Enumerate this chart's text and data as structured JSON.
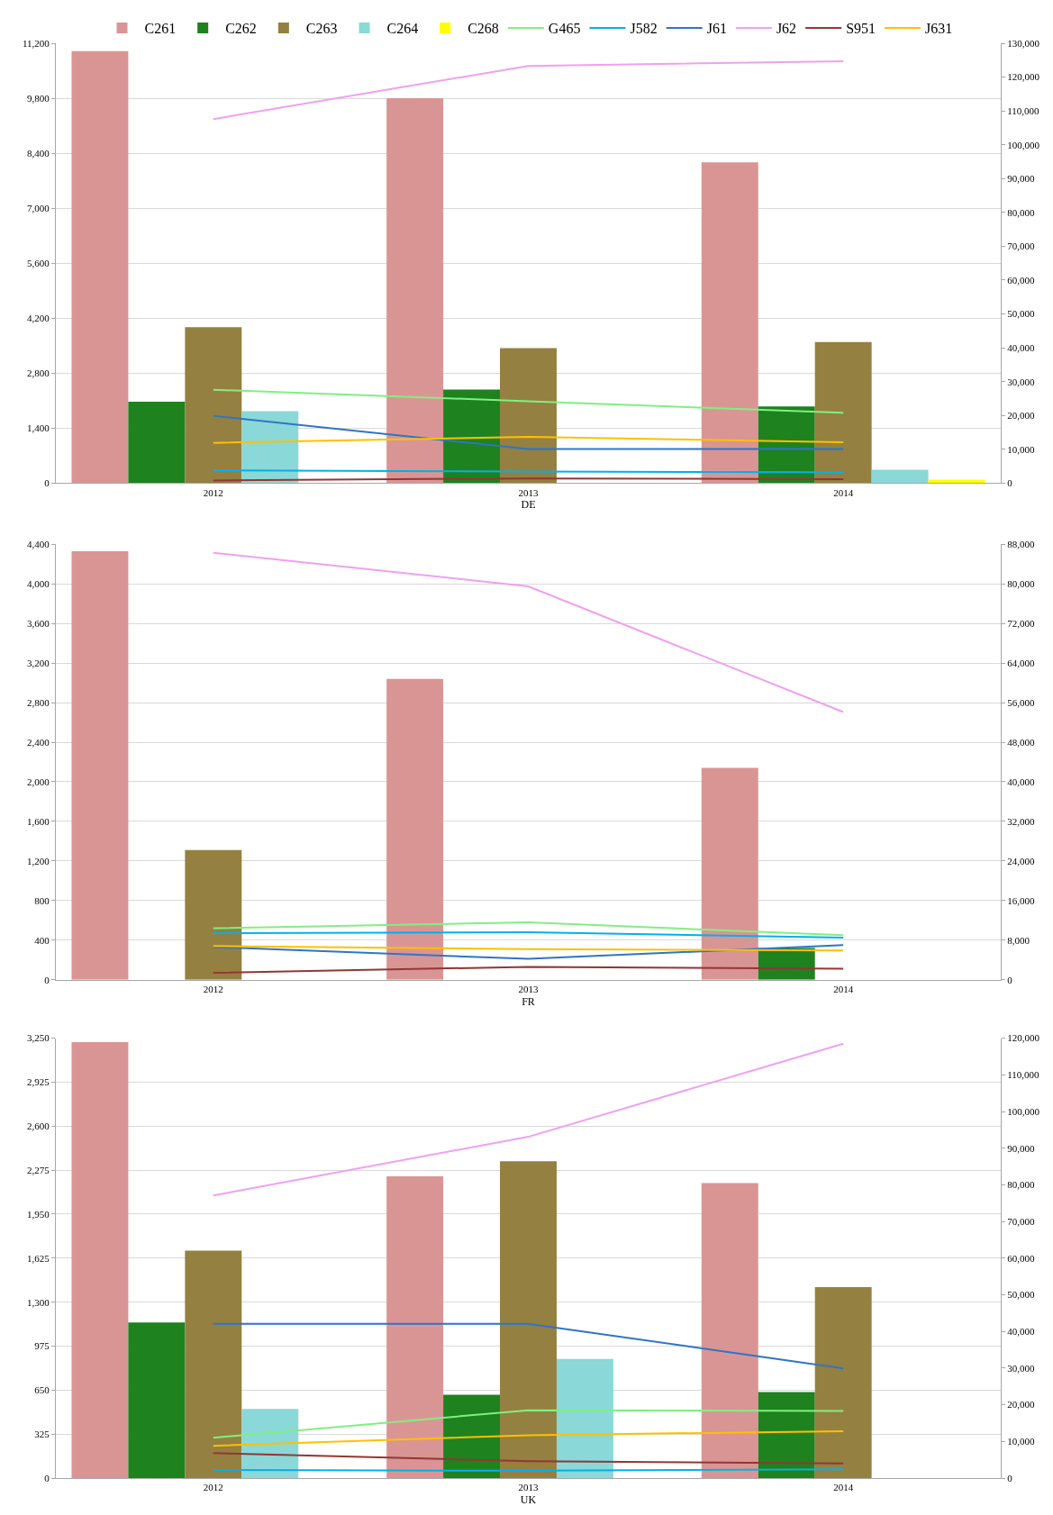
{
  "chart_data": [
    {
      "type": "bar",
      "xlabel": "DE",
      "categories": [
        "2012",
        "2013",
        "2014"
      ],
      "legend": "top",
      "grid": "y",
      "ylim": [
        0,
        11200
      ],
      "yticks": [
        0,
        {
          "value": 1400,
          "label": "1,400"
        },
        {
          "value": 2800,
          "label": "2,800"
        },
        {
          "value": 4200,
          "label": "4,200"
        },
        {
          "value": 5600,
          "label": "5,600"
        },
        {
          "value": 7000,
          "label": "7,000"
        },
        {
          "value": 8400,
          "label": "8,400"
        },
        {
          "value": 9800,
          "label": "9,800"
        },
        {
          "value": 11200,
          "label": "11,200"
        }
      ],
      "y2lim": [
        0,
        130000
      ],
      "y2ticks": [
        0,
        {
          "value": 10000,
          "label": "10,000"
        },
        {
          "value": 20000,
          "label": "20,000"
        },
        {
          "value": 30000,
          "label": "30,000"
        },
        {
          "value": 40000,
          "label": "40,000"
        },
        {
          "value": 50000,
          "label": "50,000"
        },
        {
          "value": 60000,
          "label": "60,000"
        },
        {
          "value": 70000,
          "label": "70,000"
        },
        {
          "value": 80000,
          "label": "80,000"
        },
        {
          "value": 90000,
          "label": "90,000"
        },
        {
          "value": 100000,
          "label": "100,000"
        },
        {
          "value": 110000,
          "label": "110,000"
        },
        {
          "value": 120000,
          "label": "120,000"
        },
        {
          "value": 130000,
          "label": "130,000"
        }
      ],
      "series": [
        {
          "name": "C261",
          "color": "#d99594",
          "values": [
            11000,
            9800,
            8170
          ]
        },
        {
          "name": "C262",
          "color": "#1e821e",
          "values": [
            2070,
            2380,
            1950
          ]
        },
        {
          "name": "C263",
          "color": "#948040",
          "values": [
            3970,
            3440,
            3590
          ]
        },
        {
          "name": "C264",
          "color": "#8ad8d8",
          "values": [
            1830,
            null,
            340
          ]
        },
        {
          "name": "C268",
          "color": "#ffff00",
          "values": [
            null,
            null,
            90
          ]
        },
        {
          "name": "G465",
          "color": "#80f080",
          "type": "line",
          "axis": "y2",
          "values": [
            27600,
            24200,
            20800
          ]
        },
        {
          "name": "J582",
          "color": "#00b0f0",
          "type": "line",
          "axis": "y2",
          "values": [
            3800,
            3400,
            3200
          ]
        },
        {
          "name": "J61",
          "color": "#2e75c6",
          "type": "line",
          "axis": "y2",
          "values": [
            19900,
            10100,
            10100
          ]
        },
        {
          "name": "J62",
          "color": "#f0a0f0",
          "type": "line",
          "axis": "y2",
          "values": [
            107600,
            123300,
            124700
          ]
        },
        {
          "name": "S951",
          "color": "#943634",
          "type": "line",
          "axis": "y2",
          "values": [
            800,
            1400,
            1200
          ]
        },
        {
          "name": "J631",
          "color": "#ffc000",
          "type": "line",
          "axis": "y2",
          "values": [
            11900,
            13700,
            12100
          ]
        }
      ]
    },
    {
      "type": "bar",
      "xlabel": "FR",
      "categories": [
        "2012",
        "2013",
        "2014"
      ],
      "grid": "y",
      "ylim": [
        0,
        4400
      ],
      "yticks": [
        0,
        400,
        800,
        {
          "value": 1200,
          "label": "1,200"
        },
        {
          "value": 1600,
          "label": "1,600"
        },
        {
          "value": 2000,
          "label": "2,000"
        },
        {
          "value": 2400,
          "label": "2,400"
        },
        {
          "value": 2800,
          "label": "2,800"
        },
        {
          "value": 3200,
          "label": "3,200"
        },
        {
          "value": 3600,
          "label": "3,600"
        },
        {
          "value": 4000,
          "label": "4,000"
        },
        {
          "value": 4400,
          "label": "4,400"
        }
      ],
      "y2lim": [
        0,
        88000
      ],
      "y2ticks": [
        0,
        {
          "value": 8000,
          "label": "8,000"
        },
        {
          "value": 16000,
          "label": "16,000"
        },
        {
          "value": 24000,
          "label": "24,000"
        },
        {
          "value": 32000,
          "label": "32,000"
        },
        {
          "value": 40000,
          "label": "40,000"
        },
        {
          "value": 48000,
          "label": "48,000"
        },
        {
          "value": 56000,
          "label": "56,000"
        },
        {
          "value": 64000,
          "label": "64,000"
        },
        {
          "value": 72000,
          "label": "72,000"
        },
        {
          "value": 80000,
          "label": "80,000"
        },
        {
          "value": 88000,
          "label": "88,000"
        }
      ],
      "series": [
        {
          "color": "#d99594",
          "values": [
            4330,
            3040,
            2140
          ]
        },
        {
          "color": "#1e821e",
          "values": [
            null,
            null,
            320
          ]
        },
        {
          "color": "#948040",
          "values": [
            1310,
            null,
            null
          ]
        },
        {
          "color": "#8ad8d8",
          "values": [
            null,
            null,
            null
          ]
        },
        {
          "color": "#ffff00",
          "values": [
            null,
            null,
            null
          ]
        },
        {
          "color": "#80f080",
          "type": "line",
          "axis": "y2",
          "values": [
            10400,
            11600,
            9000
          ]
        },
        {
          "color": "#00b0f0",
          "type": "line",
          "axis": "y2",
          "values": [
            9400,
            9600,
            8500
          ]
        },
        {
          "color": "#2e75c6",
          "type": "line",
          "axis": "y2",
          "values": [
            6600,
            4200,
            7000
          ]
        },
        {
          "color": "#f0a0f0",
          "type": "line",
          "axis": "y2",
          "values": [
            86300,
            79500,
            54100
          ]
        },
        {
          "color": "#943634",
          "type": "line",
          "axis": "y2",
          "values": [
            1400,
            2600,
            2200
          ]
        },
        {
          "color": "#ffc000",
          "type": "line",
          "axis": "y2",
          "values": [
            6800,
            6200,
            5900
          ]
        }
      ]
    },
    {
      "type": "bar",
      "xlabel": "UK",
      "categories": [
        "2012",
        "2013",
        "2014"
      ],
      "grid": "y",
      "ylim": [
        0,
        3250
      ],
      "yticks": [
        0,
        325,
        650,
        975,
        {
          "value": 1300,
          "label": "1,300"
        },
        {
          "value": 1625,
          "label": "1,625"
        },
        {
          "value": 1950,
          "label": "1,950"
        },
        {
          "value": 2275,
          "label": "2,275"
        },
        {
          "value": 2600,
          "label": "2,600"
        },
        {
          "value": 2925,
          "label": "2,925"
        },
        {
          "value": 3250,
          "label": "3,250"
        }
      ],
      "y2lim": [
        0,
        120000
      ],
      "y2ticks": [
        0,
        {
          "value": 10000,
          "label": "10,000"
        },
        {
          "value": 20000,
          "label": "20,000"
        },
        {
          "value": 30000,
          "label": "30,000"
        },
        {
          "value": 40000,
          "label": "40,000"
        },
        {
          "value": 50000,
          "label": "50,000"
        },
        {
          "value": 60000,
          "label": "60,000"
        },
        {
          "value": 70000,
          "label": "70,000"
        },
        {
          "value": 80000,
          "label": "80,000"
        },
        {
          "value": 90000,
          "label": "90,000"
        },
        {
          "value": 100000,
          "label": "100,000"
        },
        {
          "value": 110000,
          "label": "110,000"
        },
        {
          "value": 120000,
          "label": "120,000"
        }
      ],
      "series": [
        {
          "color": "#d99594",
          "values": [
            3220,
            2230,
            2180
          ]
        },
        {
          "color": "#1e821e",
          "values": [
            1150,
            615,
            635
          ]
        },
        {
          "color": "#948040",
          "values": [
            1680,
            2340,
            1410
          ]
        },
        {
          "color": "#8ad8d8",
          "values": [
            510,
            880,
            null
          ]
        },
        {
          "color": "#ffff00",
          "values": [
            null,
            null,
            null
          ]
        },
        {
          "color": "#80f080",
          "type": "line",
          "axis": "y2",
          "values": [
            11000,
            18500,
            18300
          ]
        },
        {
          "color": "#00b0f0",
          "type": "line",
          "axis": "y2",
          "values": [
            2200,
            2000,
            2400
          ]
        },
        {
          "color": "#2e75c6",
          "type": "line",
          "axis": "y2",
          "values": [
            42100,
            42100,
            29900
          ]
        },
        {
          "color": "#f0a0f0",
          "type": "line",
          "axis": "y2",
          "values": [
            77100,
            93100,
            118500
          ]
        },
        {
          "color": "#943634",
          "type": "line",
          "axis": "y2",
          "values": [
            6800,
            4600,
            4000
          ]
        },
        {
          "color": "#ffc000",
          "type": "line",
          "axis": "y2",
          "values": [
            8800,
            11700,
            12800
          ]
        }
      ]
    }
  ]
}
